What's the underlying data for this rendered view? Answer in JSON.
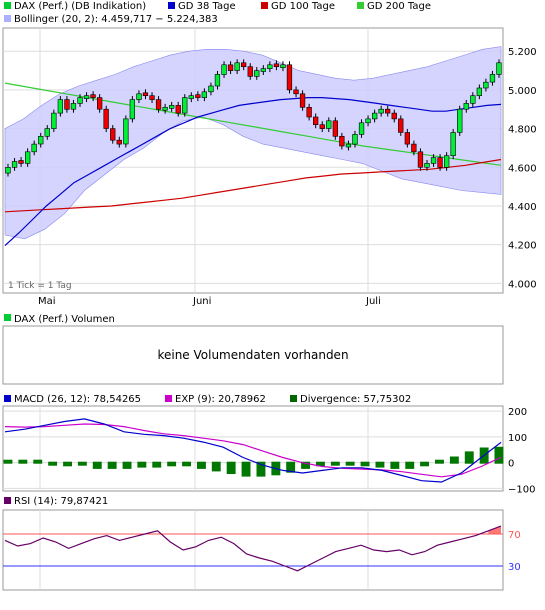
{
  "main": {
    "legend": [
      {
        "label": "DAX (Perf.) (DB Indikation)",
        "color": "#00cc33"
      },
      {
        "label": "GD 38 Tage",
        "color": "#0000cc"
      },
      {
        "label": "GD 100 Tage",
        "color": "#cc0000"
      },
      {
        "label": "GD 200 Tage",
        "color": "#33cc33"
      },
      {
        "label": "Bollinger (20, 2): 4.459,717 − 5.224,383",
        "color": "#aab0ff"
      }
    ],
    "tick_note": "1 Tick = 1 Tag",
    "month_labels": [
      "Mai",
      "Juni",
      "Juli"
    ]
  },
  "volume": {
    "legend_label": "DAX (Perf.) Volumen",
    "message": "keine Volumendaten vorhanden"
  },
  "macd": {
    "legend": [
      {
        "label": "MACD (26, 12): 78,54265",
        "color": "#0000cc"
      },
      {
        "label": "EXP (9): 20,78962",
        "color": "#cc00cc"
      },
      {
        "label": "Divergence: 57,75302",
        "color": "#006600"
      }
    ]
  },
  "rsi": {
    "legend_label": "RSI (14): 79,87421",
    "legend_color": "#660066"
  },
  "colors": {
    "candle_up": "#00ee33",
    "candle_down": "#ee0000",
    "bollinger_fill": "#ccccff",
    "gd38": "#0000cc",
    "gd100": "#cc0000",
    "gd200": "#33cc33",
    "macd": "#0000cc",
    "exp": "#cc00cc",
    "divergence": "#007700",
    "rsi_line": "#660066",
    "rsi_over": "#ff5555",
    "rsi_under": "#3333ff"
  },
  "chart_data": [
    {
      "type": "candlestick",
      "title": "DAX (Perf.) (DB Indikation)",
      "ylim": [
        3950,
        5320
      ],
      "yticks": [
        4000,
        4200,
        4400,
        4600,
        4800,
        5000,
        5200
      ],
      "ytick_labels": [
        "4.000",
        "4.200",
        "4.400",
        "4.600",
        "4.800",
        "5.000",
        "5.200"
      ],
      "ohlc_close": [
        4600,
        4630,
        4620,
        4680,
        4720,
        4760,
        4800,
        4880,
        4950,
        4900,
        4930,
        4960,
        4970,
        4960,
        4900,
        4800,
        4740,
        4720,
        4850,
        4950,
        4980,
        4970,
        4950,
        4900,
        4910,
        4920,
        4880,
        4960,
        4970,
        4960,
        4990,
        5020,
        5080,
        5130,
        5100,
        5140,
        5120,
        5070,
        5100,
        5110,
        5130,
        5120,
        5130,
        5000,
        4980,
        4910,
        4860,
        4820,
        4800,
        4840,
        4760,
        4710,
        4720,
        4770,
        4830,
        4850,
        4880,
        4900,
        4880,
        4850,
        4780,
        4720,
        4680,
        4600,
        4620,
        4650,
        4600,
        4660,
        4780,
        4900,
        4930,
        4970,
        5010,
        5040,
        5080,
        5140
      ],
      "close_up": [
        true,
        true,
        false,
        true,
        true,
        true,
        true,
        true,
        true,
        false,
        true,
        true,
        true,
        false,
        false,
        false,
        false,
        false,
        true,
        true,
        true,
        false,
        false,
        false,
        true,
        true,
        false,
        true,
        true,
        false,
        true,
        true,
        true,
        true,
        false,
        true,
        false,
        false,
        true,
        true,
        true,
        false,
        true,
        false,
        false,
        false,
        false,
        false,
        false,
        true,
        false,
        false,
        true,
        true,
        true,
        true,
        true,
        true,
        false,
        false,
        false,
        false,
        false,
        false,
        true,
        true,
        false,
        true,
        true,
        true,
        true,
        true,
        true,
        true,
        true,
        true
      ],
      "gd38": [
        4195,
        4260,
        4330,
        4400,
        4460,
        4520,
        4560,
        4600,
        4640,
        4680,
        4720,
        4760,
        4800,
        4830,
        4860,
        4880,
        4900,
        4920,
        4930,
        4940,
        4950,
        4955,
        4960,
        4960,
        4955,
        4950,
        4940,
        4930,
        4920,
        4910,
        4900,
        4890,
        4890,
        4900,
        4910,
        4920,
        4925
      ],
      "gd100": [
        4370,
        4375,
        4380,
        4385,
        4390,
        4395,
        4400,
        4410,
        4420,
        4430,
        4440,
        4455,
        4470,
        4485,
        4500,
        4515,
        4530,
        4545,
        4555,
        4565,
        4570,
        4575,
        4580,
        4585,
        4590,
        4600,
        4610,
        4625,
        4640
      ],
      "gd200": [
        5035,
        5010,
        4985,
        4960,
        4935,
        4910,
        4885,
        4860,
        4835,
        4810,
        4785,
        4760,
        4735,
        4710,
        4690,
        4670,
        4650,
        4630,
        4610
      ],
      "bollinger_upper": [
        4800,
        4850,
        4920,
        4980,
        5020,
        5050,
        5080,
        5120,
        5150,
        5180,
        5200,
        5210,
        5210,
        5200,
        5180,
        5140,
        5100,
        5080,
        5060,
        5050,
        5060,
        5080,
        5100,
        5120,
        5150,
        5180,
        5210,
        5224
      ],
      "bollinger_lower": [
        4250,
        4230,
        4280,
        4360,
        4480,
        4560,
        4640,
        4700,
        4780,
        4840,
        4860,
        4820,
        4760,
        4720,
        4700,
        4680,
        4660,
        4640,
        4620,
        4580,
        4540,
        4520,
        4500,
        4480,
        4470,
        4460
      ]
    },
    {
      "type": "line",
      "title": "MACD (26, 12)",
      "ylim": [
        -110,
        220
      ],
      "yticks": [
        200,
        100,
        0,
        -100
      ],
      "ytick_labels": [
        "200",
        "100",
        "0",
        "−100"
      ],
      "series": [
        {
          "name": "MACD (26, 12): 78,54265",
          "values": [
            120,
            130,
            145,
            160,
            170,
            150,
            120,
            110,
            105,
            95,
            80,
            60,
            20,
            -10,
            -30,
            -40,
            -30,
            -20,
            -20,
            -30,
            -50,
            -70,
            -75,
            -40,
            20,
            78.5
          ]
        },
        {
          "name": "EXP (9): 20,78962",
          "values": [
            140,
            138,
            140,
            145,
            150,
            148,
            140,
            125,
            112,
            105,
            95,
            85,
            70,
            45,
            20,
            0,
            -15,
            -22,
            -25,
            -28,
            -35,
            -45,
            -55,
            -45,
            -15,
            20.8
          ]
        }
      ],
      "divergence": [
        0,
        0,
        0,
        -5,
        -10,
        -5,
        -20,
        -20,
        -20,
        -15,
        -15,
        -10,
        -10,
        -20,
        -30,
        -40,
        -50,
        -50,
        -45,
        -35,
        -20,
        -10,
        -5,
        -5,
        -10,
        -15,
        -20,
        -20,
        -10,
        5,
        20,
        40,
        55,
        57.8
      ]
    },
    {
      "type": "line",
      "title": "RSI (14)",
      "ylim": [
        0,
        100
      ],
      "yticks": [
        70,
        30
      ],
      "ytick_labels": [
        "70",
        "30"
      ],
      "series": [
        {
          "name": "RSI (14): 79,87421",
          "values": [
            62,
            55,
            58,
            65,
            60,
            52,
            58,
            64,
            68,
            62,
            66,
            70,
            74,
            60,
            50,
            54,
            62,
            66,
            58,
            45,
            40,
            36,
            30,
            24,
            32,
            40,
            48,
            52,
            56,
            50,
            48,
            50,
            44,
            48,
            56,
            60,
            64,
            68,
            74,
            79.9
          ]
        }
      ]
    }
  ]
}
